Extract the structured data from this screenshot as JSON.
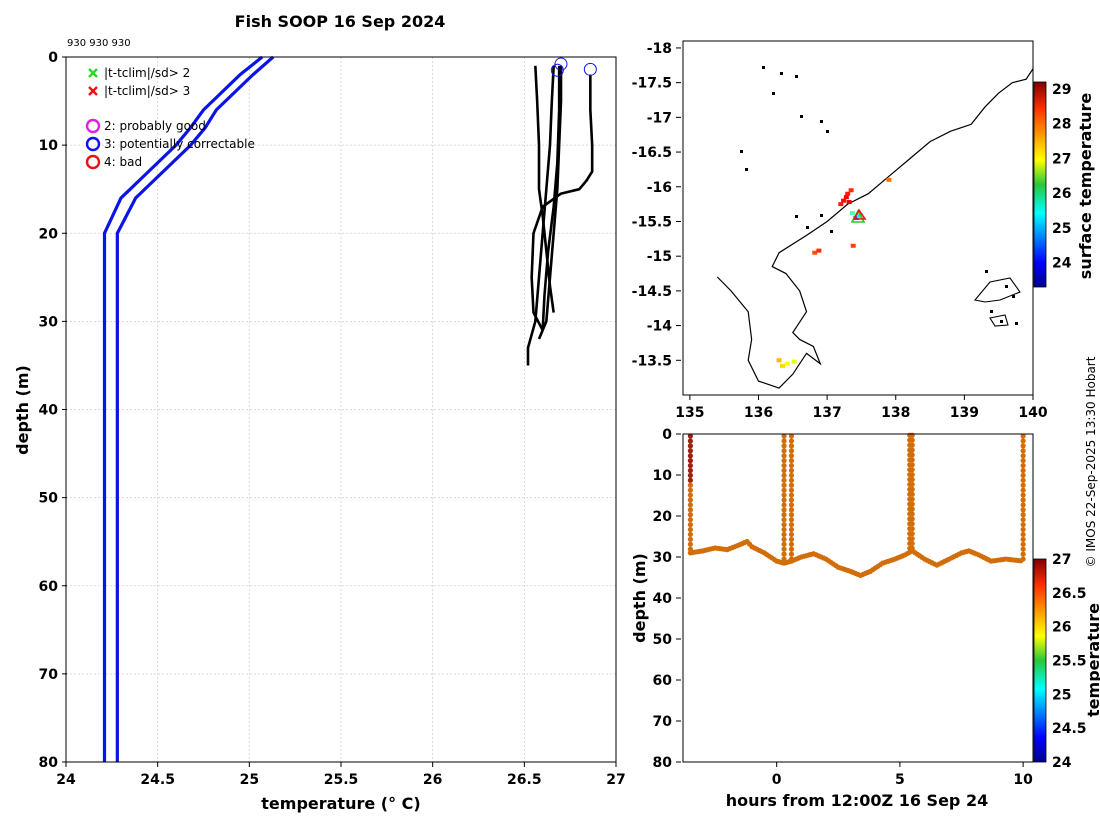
{
  "colors": {
    "clim": "#0a14e6",
    "profile": "#000000",
    "series_point": "#d26e0a"
  },
  "credit": "© IMOS 22-Sep-2025 13:30 Hobart",
  "chart_data": [
    {
      "id": "profile",
      "type": "line",
      "title": "Fish SOOP 16 Sep 2024",
      "header_note": "930 930 930",
      "xlabel": "temperature (° C)",
      "ylabel": "depth (m)",
      "xlim": [
        24,
        27
      ],
      "ylim": [
        0,
        80
      ],
      "y_reversed": true,
      "grid": true,
      "xticks": [
        24,
        24.5,
        25,
        25.5,
        26,
        26.5,
        27
      ],
      "xtick_labels": [
        "24",
        "24.5",
        "25",
        "25.5",
        "26",
        "26.5",
        "27"
      ],
      "yticks": [
        0,
        10,
        20,
        30,
        40,
        50,
        60,
        70,
        80
      ],
      "ytick_labels": [
        "0",
        "10",
        "20",
        "30",
        "40",
        "50",
        "60",
        "70",
        "80"
      ],
      "legend_position": "top-left",
      "legend": [
        {
          "marker": "x",
          "color": "#22dd22",
          "label": "|t-tclim|/sd> 2"
        },
        {
          "marker": "x",
          "color": "#ee1111",
          "label": "|t-tclim|/sd> 3"
        },
        {
          "marker": "o",
          "color": "#dd22dd",
          "label": "2: probably good"
        },
        {
          "marker": "o",
          "color": "#1111ee",
          "label": "3: potentially correctable"
        },
        {
          "marker": "o",
          "color": "#ee1111",
          "label": "4: bad"
        }
      ],
      "climatology": [
        {
          "points": [
            [
              25.07,
              0
            ],
            [
              24.95,
              2
            ],
            [
              24.85,
              4
            ],
            [
              24.75,
              6
            ],
            [
              24.68,
              8
            ],
            [
              24.6,
              10
            ],
            [
              24.5,
              12
            ],
            [
              24.4,
              14
            ],
            [
              24.3,
              16
            ],
            [
              24.21,
              20
            ],
            [
              24.21,
              80
            ]
          ]
        },
        {
          "points": [
            [
              25.13,
              0
            ],
            [
              25.02,
              2
            ],
            [
              24.92,
              4
            ],
            [
              24.82,
              6
            ],
            [
              24.76,
              8
            ],
            [
              24.68,
              10
            ],
            [
              24.58,
              12
            ],
            [
              24.48,
              14
            ],
            [
              24.38,
              16
            ],
            [
              24.28,
              20
            ],
            [
              24.28,
              80
            ]
          ]
        }
      ],
      "profiles": [
        {
          "points": [
            [
              26.66,
              1
            ],
            [
              26.65,
              5
            ],
            [
              26.64,
              10
            ],
            [
              26.62,
              15
            ],
            [
              26.6,
              20
            ],
            [
              26.58,
              25
            ],
            [
              26.56,
              30
            ],
            [
              26.52,
              33
            ],
            [
              26.52,
              35
            ]
          ]
        },
        {
          "points": [
            [
              26.7,
              1
            ],
            [
              26.7,
              5
            ],
            [
              26.69,
              10
            ],
            [
              26.68,
              15
            ],
            [
              26.66,
              20
            ],
            [
              26.64,
              25
            ],
            [
              26.62,
              30
            ],
            [
              26.58,
              32
            ]
          ]
        },
        {
          "points": [
            [
              26.69,
              1
            ],
            [
              26.69,
              6
            ],
            [
              26.68,
              12
            ],
            [
              26.66,
              17
            ],
            [
              26.63,
              22
            ],
            [
              26.61,
              27
            ],
            [
              26.6,
              31
            ]
          ]
        },
        {
          "points": [
            [
              26.56,
              1
            ],
            [
              26.57,
              5
            ],
            [
              26.58,
              10
            ],
            [
              26.58,
              15
            ],
            [
              26.6,
              18
            ],
            [
              26.62,
              22
            ],
            [
              26.64,
              26
            ],
            [
              26.66,
              29
            ]
          ]
        },
        {
          "points": [
            [
              26.86,
              2
            ],
            [
              26.86,
              6
            ],
            [
              26.87,
              10
            ],
            [
              26.87,
              13
            ],
            [
              26.84,
              14
            ],
            [
              26.8,
              15
            ],
            [
              26.7,
              15.5
            ],
            [
              26.6,
              17
            ],
            [
              26.55,
              20
            ],
            [
              26.54,
              25
            ],
            [
              26.55,
              29
            ],
            [
              26.6,
              31
            ]
          ]
        }
      ],
      "flag_circles": [
        [
          26.68,
          1.5
        ],
        [
          26.7,
          0.8
        ],
        [
          26.86,
          1.4
        ]
      ]
    },
    {
      "id": "map",
      "type": "scatter",
      "xlim": [
        134.9,
        140
      ],
      "ylim": [
        -18.1,
        -13
      ],
      "grid": false,
      "xticks": [
        135,
        136,
        137,
        138,
        139,
        140
      ],
      "xtick_labels": [
        "135",
        "136",
        "137",
        "138",
        "139",
        "140"
      ],
      "yticks": [
        -13.5,
        -14,
        -14.5,
        -15,
        -15.5,
        -16,
        -16.5,
        -17,
        -17.5,
        -18
      ],
      "ytick_labels": [
        "-13.5",
        "-14",
        "-14.5",
        "-15",
        "-15.5",
        "-16",
        "-16.5",
        "-17",
        "-17.5",
        "-18"
      ],
      "colorbar_label": "surface temperature",
      "colorbar_range": [
        23.3,
        29.2
      ],
      "colorbar_ticks": [
        "24",
        "25",
        "26",
        "27",
        "28",
        "29"
      ],
      "coastline": [
        [
          135.4,
          -14.7
        ],
        [
          135.6,
          -14.5
        ],
        [
          135.85,
          -14.2
        ],
        [
          135.9,
          -13.8
        ],
        [
          135.85,
          -13.5
        ],
        [
          136.0,
          -13.2
        ],
        [
          136.3,
          -13.1
        ],
        [
          136.5,
          -13.3
        ],
        [
          136.7,
          -13.6
        ],
        [
          136.9,
          -13.45
        ],
        [
          136.8,
          -13.7
        ],
        [
          136.6,
          -13.8
        ],
        [
          136.5,
          -13.9
        ],
        [
          136.7,
          -14.2
        ],
        [
          136.6,
          -14.5
        ],
        [
          136.4,
          -14.75
        ],
        [
          136.2,
          -14.85
        ],
        [
          136.3,
          -15.05
        ],
        [
          136.7,
          -15.3
        ],
        [
          137.0,
          -15.5
        ],
        [
          137.3,
          -15.75
        ],
        [
          137.6,
          -15.9
        ],
        [
          137.9,
          -16.15
        ],
        [
          138.2,
          -16.4
        ],
        [
          138.5,
          -16.65
        ],
        [
          138.8,
          -16.8
        ],
        [
          139.1,
          -16.9
        ],
        [
          139.3,
          -17.15
        ],
        [
          139.5,
          -17.35
        ],
        [
          139.7,
          -17.5
        ],
        [
          139.9,
          -17.55
        ],
        [
          140.0,
          -17.7
        ]
      ],
      "points": [
        [
          136.35,
          -13.42,
          27.2
        ],
        [
          136.42,
          -13.45,
          27.0
        ],
        [
          136.52,
          -13.48,
          26.8
        ],
        [
          136.3,
          -13.5,
          27.4
        ],
        [
          136.82,
          -15.05,
          28.0
        ],
        [
          136.88,
          -15.08,
          28.2
        ],
        [
          137.38,
          -15.15,
          28.1
        ],
        [
          137.42,
          -15.55,
          24.5
        ],
        [
          137.47,
          -15.58,
          25.5
        ],
        [
          137.37,
          -15.62,
          26.0
        ],
        [
          137.2,
          -15.75,
          28.3
        ],
        [
          137.24,
          -15.8,
          28.4
        ],
        [
          137.28,
          -15.85,
          28.5
        ],
        [
          137.3,
          -15.9,
          28.3
        ],
        [
          137.35,
          -15.95,
          28.2
        ],
        [
          137.32,
          -15.78,
          28.6
        ],
        [
          137.9,
          -16.1,
          27.8
        ]
      ]
    },
    {
      "id": "timeseries",
      "type": "scatter",
      "xlabel": "hours from 12:00Z 16 Sep 24",
      "ylabel": "depth (m)",
      "xlim": [
        -3.8,
        10.4
      ],
      "ylim": [
        0,
        80
      ],
      "y_reversed": true,
      "grid": false,
      "xticks": [
        0,
        5,
        10
      ],
      "xtick_labels": [
        "0",
        "5",
        "10"
      ],
      "yticks": [
        0,
        10,
        20,
        30,
        40,
        50,
        60,
        70,
        80
      ],
      "ytick_labels": [
        "0",
        "10",
        "20",
        "30",
        "40",
        "50",
        "60",
        "70",
        "80"
      ],
      "colorbar_label": "temperature",
      "colorbar_range": [
        24,
        27
      ],
      "colorbar_ticks": [
        "24",
        "24.5",
        "25",
        "25.5",
        "26",
        "26.5",
        "27"
      ],
      "trace": [
        [
          -3.5,
          29
        ],
        [
          -3.0,
          28.5
        ],
        [
          -2.5,
          27.8
        ],
        [
          -2.0,
          28.2
        ],
        [
          -1.5,
          27.0
        ],
        [
          -1.2,
          26.2
        ],
        [
          -1.0,
          27.5
        ],
        [
          -0.5,
          29
        ],
        [
          0.0,
          31
        ],
        [
          0.3,
          31.5
        ],
        [
          0.6,
          31
        ],
        [
          1.0,
          30
        ],
        [
          1.5,
          29.2
        ],
        [
          2.0,
          30.5
        ],
        [
          2.5,
          32.5
        ],
        [
          3.0,
          33.5
        ],
        [
          3.4,
          34.5
        ],
        [
          3.8,
          33.5
        ],
        [
          4.3,
          31.5
        ],
        [
          4.8,
          30.5
        ],
        [
          5.2,
          29.5
        ],
        [
          5.5,
          28.5
        ],
        [
          6.0,
          30.5
        ],
        [
          6.5,
          32
        ],
        [
          7.0,
          30.5
        ],
        [
          7.5,
          29
        ],
        [
          7.8,
          28.5
        ],
        [
          8.2,
          29.5
        ],
        [
          8.7,
          31
        ],
        [
          9.3,
          30.5
        ],
        [
          10.0,
          31
        ]
      ],
      "casts": [
        {
          "x": -3.5,
          "top": 0.5,
          "bottom": 29,
          "warm_top": true
        },
        {
          "x": 0.3,
          "top": 0.5,
          "bottom": 31.5
        },
        {
          "x": 0.6,
          "top": 0.5,
          "bottom": 31
        },
        {
          "x": 5.4,
          "top": 0.3,
          "bottom": 29
        },
        {
          "x": 5.5,
          "top": 0.3,
          "bottom": 28.5
        },
        {
          "x": 10.0,
          "top": 0.5,
          "bottom": 31
        }
      ]
    }
  ]
}
